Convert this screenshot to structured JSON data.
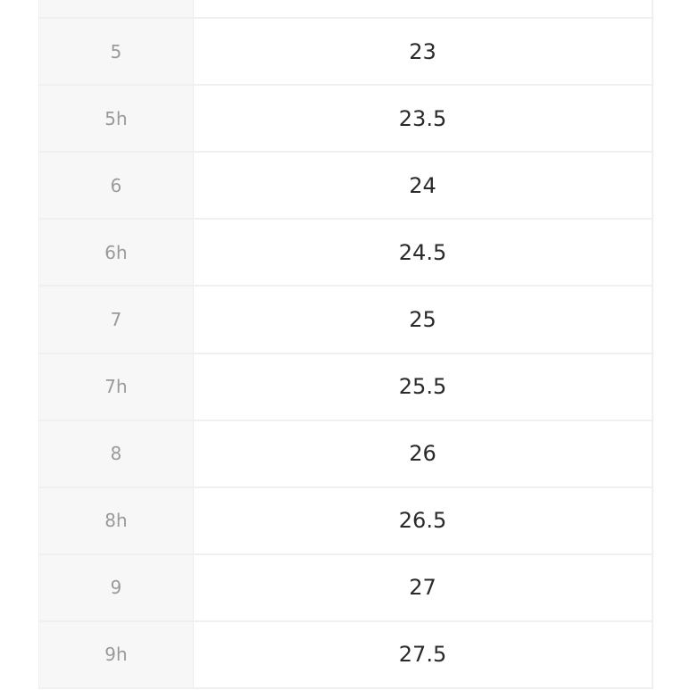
{
  "size_table": {
    "rows": [
      {
        "size": "",
        "value": ""
      },
      {
        "size": "5",
        "value": "23"
      },
      {
        "size": "5h",
        "value": "23.5"
      },
      {
        "size": "6",
        "value": "24"
      },
      {
        "size": "6h",
        "value": "24.5"
      },
      {
        "size": "7",
        "value": "25"
      },
      {
        "size": "7h",
        "value": "25.5"
      },
      {
        "size": "8",
        "value": "26"
      },
      {
        "size": "8h",
        "value": "26.5"
      },
      {
        "size": "9",
        "value": "27"
      },
      {
        "size": "9h",
        "value": "27.5"
      }
    ]
  }
}
